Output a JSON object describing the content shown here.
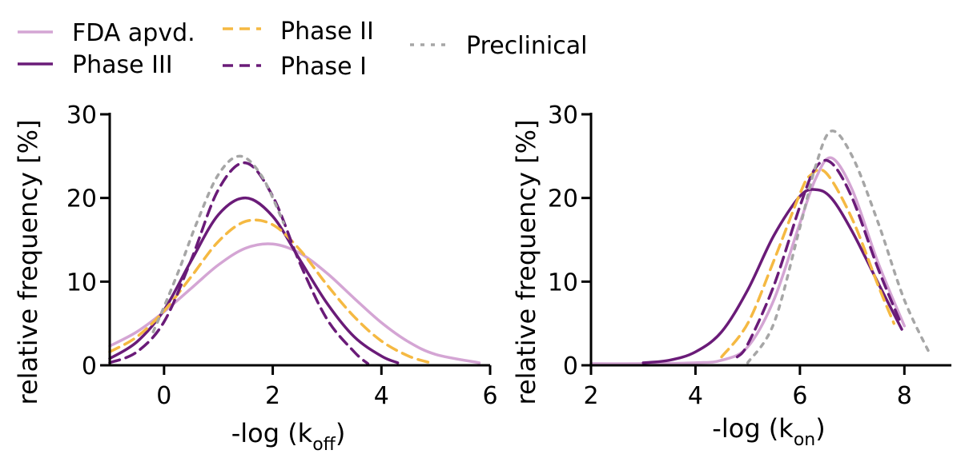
{
  "legend": {
    "entries": [
      {
        "label": "FDA apvd.",
        "color": "#d4a5d4",
        "dash": "solid"
      },
      {
        "label": "Phase III",
        "color": "#6a1b78",
        "dash": "solid"
      },
      {
        "label": "Phase II",
        "color": "#f5b942",
        "dash": "dashed"
      },
      {
        "label": "Phase I",
        "color": "#6a1b78",
        "dash": "dashed"
      },
      {
        "label": "Preclinical",
        "color": "#a6a6a6",
        "dash": "dotted"
      }
    ]
  },
  "chart_data": [
    {
      "type": "line",
      "xlabel_main": "-log (k",
      "xlabel_sub": "off",
      "xlabel_close": ")",
      "ylabel": "relative frequency [%]",
      "xlim": [
        -1,
        6
      ],
      "ylim": [
        0,
        30
      ],
      "xticks": [
        "0",
        "2",
        "4",
        "6"
      ],
      "yticks": [
        "0",
        "10",
        "20",
        "30"
      ],
      "grid": false,
      "series": [
        {
          "name": "FDA apvd.",
          "x": [
            -1,
            -0.5,
            0,
            0.5,
            1,
            1.5,
            2,
            2.5,
            3,
            3.5,
            4,
            4.5,
            5,
            5.8
          ],
          "y": [
            2.3,
            4.0,
            6.4,
            9.2,
            12.0,
            14.0,
            14.5,
            13.4,
            11.0,
            8.0,
            5.1,
            2.8,
            1.3,
            0.3
          ]
        },
        {
          "name": "Phase III",
          "x": [
            -1,
            -0.5,
            0,
            0.5,
            1,
            1.5,
            2,
            2.5,
            3,
            3.5,
            4,
            4.3
          ],
          "y": [
            0.8,
            2.8,
            6.6,
            12.5,
            18.0,
            20.0,
            17.8,
            12.6,
            7.4,
            3.4,
            1.1,
            0.3
          ]
        },
        {
          "name": "Phase II",
          "x": [
            -1,
            -0.5,
            0,
            0.5,
            1,
            1.5,
            2,
            2.5,
            3,
            3.5,
            4,
            4.5,
            4.9
          ],
          "y": [
            1.6,
            3.4,
            6.5,
            10.6,
            14.8,
            17.2,
            16.8,
            13.8,
            9.6,
            5.8,
            2.9,
            1.1,
            0.3
          ]
        },
        {
          "name": "Phase I",
          "x": [
            -1,
            -0.5,
            0,
            0.5,
            1,
            1.5,
            2,
            2.5,
            3,
            3.5,
            3.75
          ],
          "y": [
            0.3,
            1.6,
            5.2,
            12.6,
            21.0,
            24.2,
            20.2,
            12.2,
            5.5,
            1.6,
            0.2
          ]
        },
        {
          "name": "Preclinical",
          "x": [
            -0.2,
            0,
            0.3,
            0.6,
            1,
            1.4,
            1.8,
            2.2
          ],
          "y": [
            4.0,
            7.0,
            11.8,
            17.0,
            22.8,
            25.0,
            22.6,
            17.0
          ]
        }
      ]
    },
    {
      "type": "line",
      "xlabel_main": "-log (k",
      "xlabel_sub": "on",
      "xlabel_close": ")",
      "ylabel": "relative frequency [%]",
      "xlim": [
        2,
        8.9
      ],
      "ylim": [
        0,
        30
      ],
      "xticks": [
        "2",
        "4",
        "6",
        "8"
      ],
      "yticks": [
        "0",
        "10",
        "20",
        "30"
      ],
      "grid": false,
      "series": [
        {
          "name": "FDA apvd.",
          "x": [
            2,
            3,
            4,
            4.5,
            5,
            5.5,
            6,
            6.3,
            6.6,
            7,
            7.5,
            8
          ],
          "y": [
            0.2,
            0.2,
            0.3,
            0.6,
            2.2,
            7.8,
            17.0,
            22.3,
            24.8,
            21.0,
            12.2,
            4.7
          ]
        },
        {
          "name": "Phase III",
          "x": [
            3,
            3.5,
            4,
            4.5,
            5,
            5.5,
            6,
            6.3,
            6.6,
            7,
            7.5,
            7.95
          ],
          "y": [
            0.3,
            0.6,
            1.6,
            4.0,
            9.0,
            15.5,
            20.2,
            21.0,
            20.0,
            16.0,
            9.8,
            4.3
          ]
        },
        {
          "name": "Phase II",
          "x": [
            4.5,
            5,
            5.5,
            6,
            6.2,
            6.5,
            7,
            7.5,
            7.8
          ],
          "y": [
            1.0,
            5.0,
            12.5,
            20.5,
            22.7,
            23.0,
            17.5,
            9.5,
            5.0
          ]
        },
        {
          "name": "Phase I",
          "x": [
            4.8,
            5,
            5.5,
            6,
            6.3,
            6.6,
            7,
            7.5,
            7.9
          ],
          "y": [
            1.0,
            2.5,
            9.5,
            19.0,
            23.6,
            24.2,
            20.0,
            11.5,
            5.5
          ]
        },
        {
          "name": "Preclinical",
          "x": [
            5.0,
            5.5,
            6,
            6.3,
            6.6,
            7,
            7.5,
            8,
            8.5
          ],
          "y": [
            0.3,
            5.0,
            16.5,
            23.8,
            28.0,
            25.0,
            17.0,
            7.8,
            1.2
          ]
        }
      ]
    }
  ]
}
